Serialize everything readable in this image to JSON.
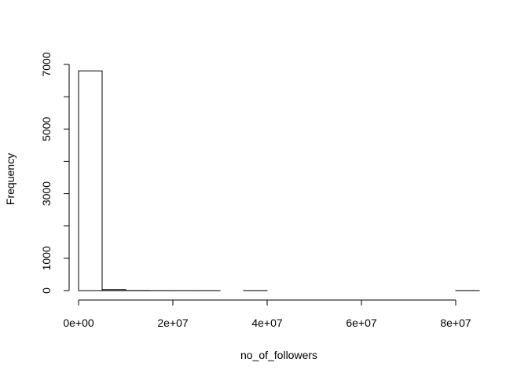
{
  "chart_data": {
    "type": "bar",
    "subtype": "histogram",
    "title": "",
    "xlabel": "no_of_followers",
    "ylabel": "Frequency",
    "bins": [
      {
        "x0": 0,
        "x1": 5000000,
        "count": 6800
      },
      {
        "x0": 5000000,
        "x1": 10000000,
        "count": 30
      },
      {
        "x0": 10000000,
        "x1": 15000000,
        "count": 4
      },
      {
        "x0": 15000000,
        "x1": 20000000,
        "count": 2
      },
      {
        "x0": 20000000,
        "x1": 25000000,
        "count": 1
      },
      {
        "x0": 25000000,
        "x1": 30000000,
        "count": 1
      },
      {
        "x0": 30000000,
        "x1": 35000000,
        "count": 0
      },
      {
        "x0": 35000000,
        "x1": 40000000,
        "count": 1
      },
      {
        "x0": 40000000,
        "x1": 45000000,
        "count": 0
      },
      {
        "x0": 45000000,
        "x1": 50000000,
        "count": 0
      },
      {
        "x0": 50000000,
        "x1": 55000000,
        "count": 0
      },
      {
        "x0": 55000000,
        "x1": 60000000,
        "count": 0
      },
      {
        "x0": 60000000,
        "x1": 65000000,
        "count": 0
      },
      {
        "x0": 65000000,
        "x1": 70000000,
        "count": 0
      },
      {
        "x0": 70000000,
        "x1": 75000000,
        "count": 0
      },
      {
        "x0": 75000000,
        "x1": 80000000,
        "count": 0
      },
      {
        "x0": 80000000,
        "x1": 85000000,
        "count": 1
      }
    ],
    "xlim": [
      0,
      85000000
    ],
    "ylim": [
      0,
      7000
    ],
    "x_ticks": [
      {
        "value": 0,
        "label": "0e+00"
      },
      {
        "value": 20000000,
        "label": "2e+07"
      },
      {
        "value": 40000000,
        "label": "4e+07"
      },
      {
        "value": 60000000,
        "label": "6e+07"
      },
      {
        "value": 80000000,
        "label": "8e+07"
      }
    ],
    "y_ticks": [
      {
        "value": 0,
        "label": "0"
      },
      {
        "value": 1000,
        "label": "1000"
      },
      {
        "value": 2000,
        "label": ""
      },
      {
        "value": 3000,
        "label": "3000"
      },
      {
        "value": 4000,
        "label": ""
      },
      {
        "value": 5000,
        "label": "5000"
      },
      {
        "value": 6000,
        "label": ""
      },
      {
        "value": 7000,
        "label": "7000"
      }
    ],
    "grid": false,
    "legend": "none",
    "colors": {
      "bar_fill": "#ffffff",
      "bar_stroke": "#000000"
    }
  }
}
